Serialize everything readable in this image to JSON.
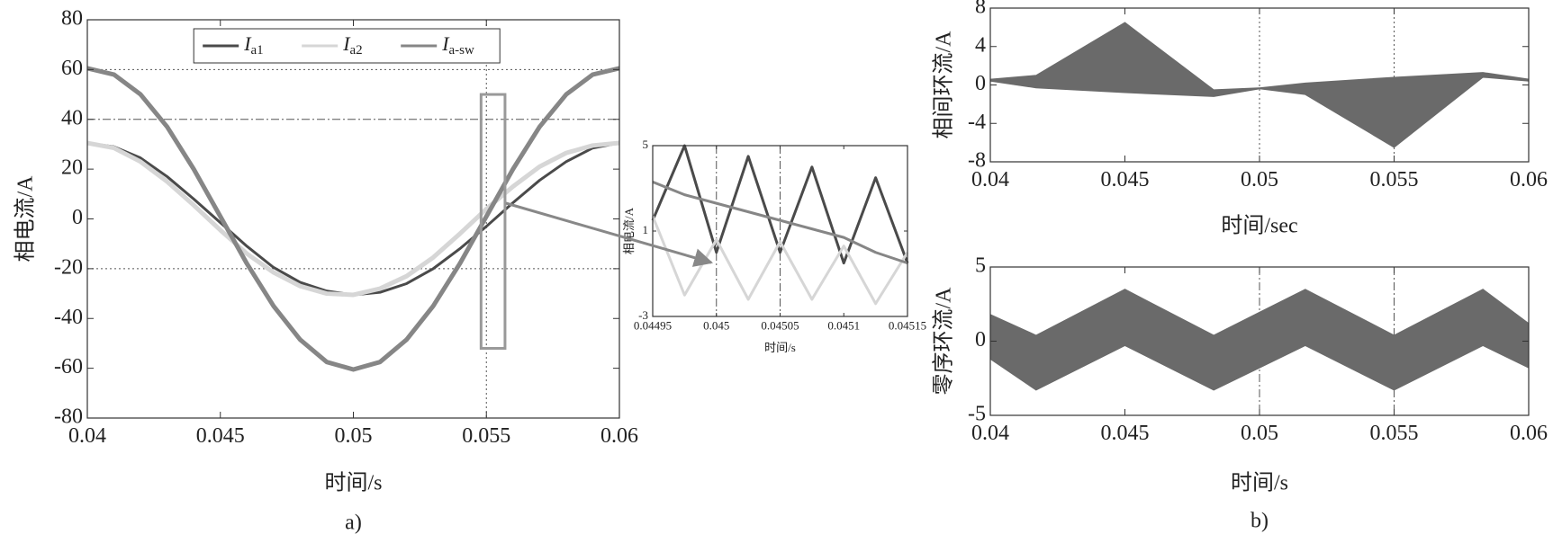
{
  "chart_data": [
    {
      "type": "line",
      "xlabel": "时间/s",
      "ylabel": "相电流/A",
      "caption": "a)",
      "xlim": [
        0.04,
        0.06
      ],
      "xticks": [
        0.04,
        0.045,
        0.05,
        0.055,
        0.06
      ],
      "ylim": [
        -80,
        80
      ],
      "yticks": [
        -80,
        -60,
        -40,
        -20,
        0,
        20,
        40,
        60,
        80
      ],
      "legend": "top",
      "ref_lines": [
        {
          "axis": "y",
          "value": 60,
          "style": "dotted"
        },
        {
          "axis": "y",
          "value": 40,
          "style": "dashdot"
        },
        {
          "axis": "y",
          "value": -20,
          "style": "dotted"
        },
        {
          "axis": "x",
          "value": 0.055,
          "style": "dotted"
        }
      ],
      "zoom_box": {
        "x": [
          0.0548,
          0.0557
        ],
        "y": [
          -52,
          50
        ]
      },
      "x": [
        0.04,
        0.041,
        0.042,
        0.043,
        0.044,
        0.045,
        0.046,
        0.047,
        0.048,
        0.049,
        0.05,
        0.051,
        0.052,
        0.053,
        0.054,
        0.055,
        0.056,
        0.057,
        0.058,
        0.059,
        0.06
      ],
      "series": [
        {
          "name": "Ia1",
          "color": "#4a4a4a",
          "width": 3,
          "values": [
            30.5,
            29,
            24.5,
            17,
            8,
            -1.5,
            -11,
            -19.5,
            -25.5,
            -29,
            -30.5,
            -29.5,
            -26,
            -20,
            -12,
            -3,
            6.5,
            15.5,
            23,
            28.5,
            30.5
          ]
        },
        {
          "name": "Ia2",
          "color": "#d6d6d6",
          "width": 5,
          "values": [
            30.5,
            28.5,
            23,
            15,
            5.5,
            -4.5,
            -14,
            -21.5,
            -27,
            -30,
            -30.5,
            -28,
            -23,
            -15.5,
            -6,
            4,
            13,
            21,
            26.5,
            29.5,
            30.5
          ]
        },
        {
          "name": "Ia-sw",
          "color": "#868686",
          "width": 5,
          "values": [
            60.5,
            58,
            50,
            37,
            20,
            1,
            -18,
            -35,
            -48.5,
            -57.5,
            -60.5,
            -57.5,
            -48.5,
            -35,
            -18,
            1,
            20,
            37,
            50,
            58,
            60.5
          ]
        }
      ]
    },
    {
      "type": "line",
      "xlabel": "时间/s",
      "ylabel": "相电流/A",
      "xlim": [
        0.04495,
        0.04515
      ],
      "xticks": [
        0.04495,
        0.045,
        0.04505,
        0.0451,
        0.04515
      ],
      "ylim": [
        -3,
        5
      ],
      "yticks": [
        -3,
        1,
        5
      ],
      "ref_lines": [
        {
          "axis": "x",
          "value": 0.045,
          "style": "dashdot"
        },
        {
          "axis": "x",
          "value": 0.04505,
          "style": "dashdot"
        }
      ],
      "x": [
        0.04495,
        0.044975,
        0.045,
        0.045025,
        0.04505,
        0.045075,
        0.0451,
        0.045125,
        0.04515
      ],
      "series": [
        {
          "color": "#4a4a4a",
          "width": 3,
          "values": [
            1.5,
            5,
            0,
            4.5,
            0,
            4,
            -0.5,
            3.5,
            -0.5
          ]
        },
        {
          "color": "#d6d6d6",
          "width": 3,
          "values": [
            1.7,
            -2,
            0.6,
            -2.2,
            0.5,
            -2.2,
            0.3,
            -2.4,
            0
          ]
        },
        {
          "color": "#868686",
          "width": 3,
          "values": [
            3.3,
            2.7,
            2.3,
            1.9,
            1.5,
            1.1,
            0.7,
            0,
            -0.5
          ]
        }
      ]
    },
    {
      "type": "band",
      "xlabel": "时间/sec",
      "ylabel": "相间环流/A",
      "color": "#6a6a6a",
      "xlim": [
        0.04,
        0.06
      ],
      "xticks": [
        0.04,
        0.045,
        0.05,
        0.055,
        0.06
      ],
      "ylim": [
        -8,
        8
      ],
      "yticks": [
        -8,
        -4,
        0,
        4,
        8
      ],
      "ref_lines": [
        {
          "axis": "x",
          "value": 0.05,
          "style": "dotted"
        },
        {
          "axis": "x",
          "value": 0.055,
          "style": "dotted"
        }
      ],
      "x": [
        0.04,
        0.0417,
        0.045,
        0.0483,
        0.05,
        0.0517,
        0.055,
        0.0583,
        0.06
      ],
      "series": [
        {
          "values": [
            0.6,
            1.0,
            6.5,
            -0.5,
            -0.3,
            0.2,
            0.8,
            1.3,
            0.6
          ]
        },
        {
          "values": [
            0.4,
            -0.3,
            -0.8,
            -1.2,
            -0.4,
            -1.0,
            -6.5,
            0.8,
            0.4
          ]
        }
      ]
    },
    {
      "type": "band",
      "xlabel": "时间/s",
      "ylabel": "零序环流/A",
      "caption": "b)",
      "color": "#6a6a6a",
      "xlim": [
        0.04,
        0.06
      ],
      "xticks": [
        0.04,
        0.045,
        0.05,
        0.055,
        0.06
      ],
      "ylim": [
        -5,
        5
      ],
      "yticks": [
        -5,
        0,
        5
      ],
      "ref_lines": [
        {
          "axis": "x",
          "value": 0.05,
          "style": "dashdot"
        },
        {
          "axis": "x",
          "value": 0.055,
          "style": "dashdot"
        }
      ],
      "x": [
        0.04,
        0.0417,
        0.045,
        0.0483,
        0.0517,
        0.055,
        0.0583,
        0.06
      ],
      "series": [
        {
          "values": [
            1.8,
            0.4,
            3.5,
            0.4,
            3.5,
            0.4,
            3.5,
            1.2
          ]
        },
        {
          "values": [
            -1.2,
            -3.3,
            -0.3,
            -3.3,
            -0.3,
            -3.3,
            -0.3,
            -1.8
          ]
        }
      ]
    }
  ]
}
